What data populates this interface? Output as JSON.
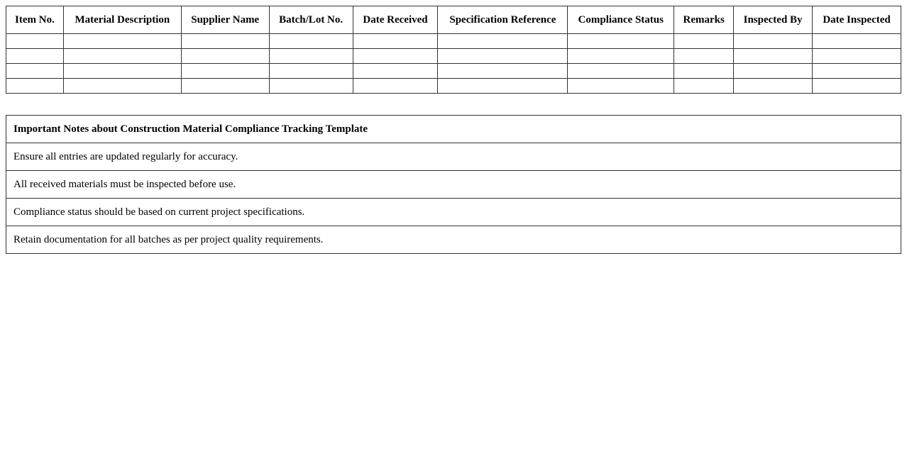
{
  "table": {
    "headers": [
      "Item No.",
      "Material Description",
      "Supplier Name",
      "Batch/Lot No.",
      "Date Received",
      "Specification Reference",
      "Compliance Status",
      "Remarks",
      "Inspected By",
      "Date Inspected"
    ],
    "rows": [
      [
        "",
        "",
        "",
        "",
        "",
        "",
        "",
        "",
        "",
        ""
      ],
      [
        "",
        "",
        "",
        "",
        "",
        "",
        "",
        "",
        "",
        ""
      ],
      [
        "",
        "",
        "",
        "",
        "",
        "",
        "",
        "",
        "",
        ""
      ],
      [
        "",
        "",
        "",
        "",
        "",
        "",
        "",
        "",
        "",
        ""
      ]
    ]
  },
  "notes": {
    "title": "Important Notes about Construction Material Compliance Tracking Template",
    "items": [
      "Ensure all entries are updated regularly for accuracy.",
      "All received materials must be inspected before use.",
      "Compliance status should be based on current project specifications.",
      "Retain documentation for all batches as per project quality requirements."
    ]
  }
}
